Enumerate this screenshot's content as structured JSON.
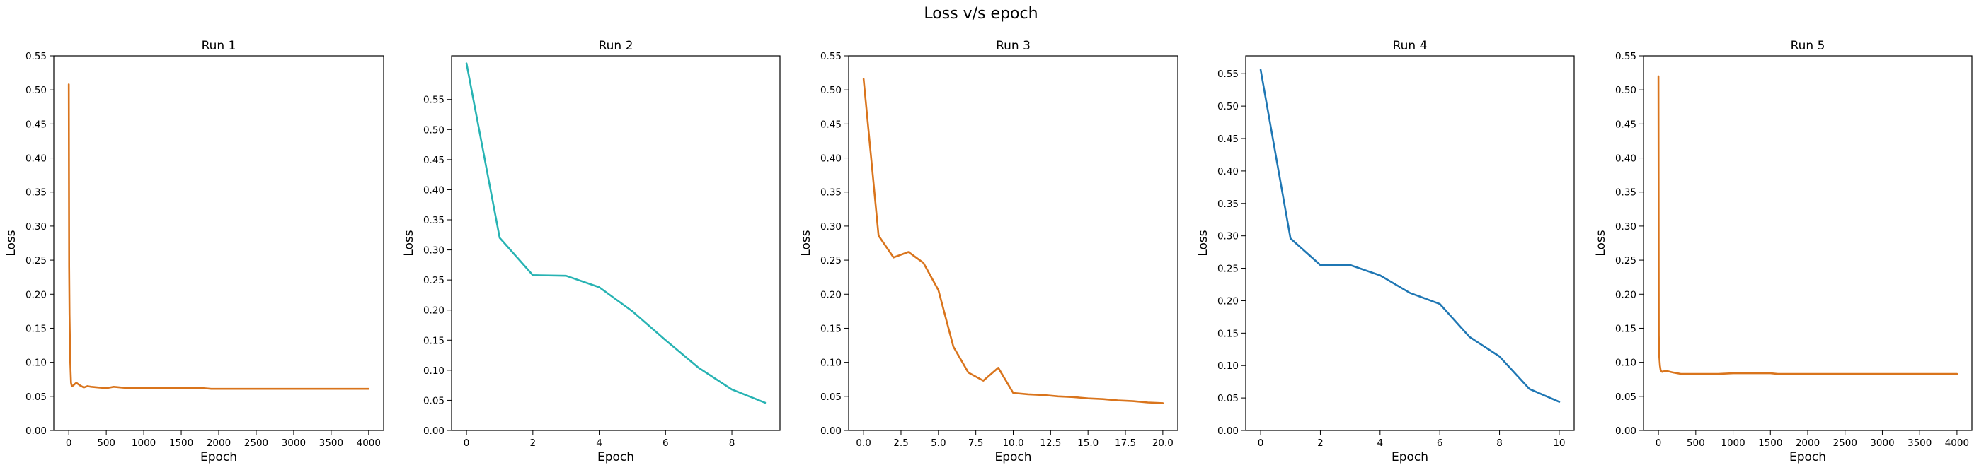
{
  "figure_title": "Loss v/s epoch",
  "colors": {
    "orange": "#d9741c",
    "teal": "#27b3b3",
    "blue": "#1f77b4"
  },
  "chart_data": [
    {
      "type": "line",
      "title": "Run 1",
      "xlabel": "Epoch",
      "ylabel": "Loss",
      "xlim": [
        -200,
        4200
      ],
      "ylim": [
        0,
        0.55
      ],
      "xticks": [
        0,
        500,
        1000,
        1500,
        2000,
        2500,
        3000,
        3500,
        4000
      ],
      "xtick_labels": [
        "0",
        "500",
        "1000",
        "1500",
        "2000",
        "2500",
        "3000",
        "3500",
        "4000"
      ],
      "yticks": [
        0,
        0.05,
        0.1,
        0.15,
        0.2,
        0.25,
        0.3,
        0.35,
        0.4,
        0.45,
        0.5,
        0.55
      ],
      "ytick_labels": [
        "0.00",
        "0.05",
        "0.10",
        "0.15",
        "0.20",
        "0.25",
        "0.30",
        "0.35",
        "0.40",
        "0.45",
        "0.50",
        "0.55"
      ],
      "grid": false,
      "color": "#d9741c",
      "series": [
        {
          "x": [
            0,
            5,
            10,
            20,
            30,
            40,
            60,
            80,
            100,
            150,
            200,
            250,
            300,
            400,
            500,
            600,
            700,
            800,
            900,
            1000,
            1500,
            1800,
            1900,
            2000,
            2500,
            3000,
            3500,
            4000
          ],
          "values": [
            0.508,
            0.24,
            0.17,
            0.1,
            0.07,
            0.065,
            0.066,
            0.068,
            0.07,
            0.066,
            0.063,
            0.065,
            0.064,
            0.063,
            0.062,
            0.064,
            0.063,
            0.062,
            0.062,
            0.062,
            0.062,
            0.062,
            0.061,
            0.061,
            0.061,
            0.061,
            0.061,
            0.061
          ]
        }
      ]
    },
    {
      "type": "line",
      "title": "Run 2",
      "xlabel": "Epoch",
      "ylabel": "Loss",
      "xlim": [
        -0.45,
        9.45
      ],
      "ylim": [
        0,
        0.6225
      ],
      "xticks": [
        0,
        2,
        4,
        6,
        8
      ],
      "xtick_labels": [
        "0",
        "2",
        "4",
        "6",
        "8"
      ],
      "yticks": [
        0,
        0.05,
        0.1,
        0.15,
        0.2,
        0.25,
        0.3,
        0.35,
        0.4,
        0.45,
        0.5,
        0.55
      ],
      "ytick_labels": [
        "0.00",
        "0.05",
        "0.10",
        "0.15",
        "0.20",
        "0.25",
        "0.30",
        "0.35",
        "0.40",
        "0.45",
        "0.50",
        "0.55"
      ],
      "grid": false,
      "color": "#27b3b3",
      "series": [
        {
          "x": [
            0,
            1,
            2,
            3,
            4,
            5,
            6,
            7,
            8,
            9
          ],
          "values": [
            0.61,
            0.32,
            0.258,
            0.257,
            0.238,
            0.198,
            0.15,
            0.104,
            0.068,
            0.046
          ]
        }
      ]
    },
    {
      "type": "line",
      "title": "Run 3",
      "xlabel": "Epoch",
      "ylabel": "Loss",
      "xlim": [
        -1,
        21
      ],
      "ylim": [
        0,
        0.55
      ],
      "xticks": [
        0,
        2.5,
        5,
        7.5,
        10,
        12.5,
        15,
        17.5,
        20
      ],
      "xtick_labels": [
        "0.0",
        "2.5",
        "5.0",
        "7.5",
        "10.0",
        "12.5",
        "15.0",
        "17.5",
        "20.0"
      ],
      "yticks": [
        0,
        0.05,
        0.1,
        0.15,
        0.2,
        0.25,
        0.3,
        0.35,
        0.4,
        0.45,
        0.5,
        0.55
      ],
      "ytick_labels": [
        "0.00",
        "0.05",
        "0.10",
        "0.15",
        "0.20",
        "0.25",
        "0.30",
        "0.35",
        "0.40",
        "0.45",
        "0.50",
        "0.55"
      ],
      "grid": false,
      "color": "#d9741c",
      "series": [
        {
          "x": [
            0,
            1,
            2,
            3,
            4,
            5,
            6,
            7,
            8,
            9,
            10,
            11,
            12,
            13,
            14,
            15,
            16,
            17,
            18,
            19,
            20
          ],
          "values": [
            0.516,
            0.286,
            0.254,
            0.262,
            0.246,
            0.206,
            0.123,
            0.085,
            0.073,
            0.092,
            0.055,
            0.053,
            0.052,
            0.05,
            0.049,
            0.047,
            0.046,
            0.044,
            0.043,
            0.041,
            0.04
          ]
        }
      ]
    },
    {
      "type": "line",
      "title": "Run 4",
      "xlabel": "Epoch",
      "ylabel": "Loss",
      "xlim": [
        -0.5,
        10.5
      ],
      "ylim": [
        0,
        0.5775
      ],
      "xticks": [
        0,
        2,
        4,
        6,
        8,
        10
      ],
      "xtick_labels": [
        "0",
        "2",
        "4",
        "6",
        "8",
        "10"
      ],
      "yticks": [
        0,
        0.05,
        0.1,
        0.15,
        0.2,
        0.25,
        0.3,
        0.35,
        0.4,
        0.45,
        0.5,
        0.55
      ],
      "ytick_labels": [
        "0.00",
        "0.05",
        "0.10",
        "0.15",
        "0.20",
        "0.25",
        "0.30",
        "0.35",
        "0.40",
        "0.45",
        "0.50",
        "0.55"
      ],
      "grid": false,
      "color": "#1f77b4",
      "series": [
        {
          "x": [
            0,
            1,
            2,
            3,
            4,
            5,
            6,
            7,
            8,
            9,
            10
          ],
          "values": [
            0.556,
            0.296,
            0.255,
            0.255,
            0.239,
            0.212,
            0.195,
            0.144,
            0.114,
            0.064,
            0.044
          ]
        }
      ]
    },
    {
      "type": "line",
      "title": "Run 5",
      "xlabel": "Epoch",
      "ylabel": "Loss",
      "xlim": [
        -200,
        4200
      ],
      "ylim": [
        0,
        0.55
      ],
      "xticks": [
        0,
        500,
        1000,
        1500,
        2000,
        2500,
        3000,
        3500,
        4000
      ],
      "xtick_labels": [
        "0",
        "500",
        "1000",
        "1500",
        "2000",
        "2500",
        "3000",
        "3500",
        "4000"
      ],
      "yticks": [
        0,
        0.05,
        0.1,
        0.15,
        0.2,
        0.25,
        0.3,
        0.35,
        0.4,
        0.45,
        0.5,
        0.55
      ],
      "ytick_labels": [
        "0.00",
        "0.05",
        "0.10",
        "0.15",
        "0.20",
        "0.25",
        "0.30",
        "0.35",
        "0.40",
        "0.45",
        "0.50",
        "0.55"
      ],
      "grid": false,
      "color": "#d9741c",
      "series": [
        {
          "x": [
            0,
            5,
            10,
            20,
            30,
            50,
            80,
            120,
            200,
            300,
            400,
            600,
            800,
            1000,
            1200,
            1500,
            1600,
            2000,
            2500,
            3000,
            3500,
            4000
          ],
          "values": [
            0.52,
            0.14,
            0.11,
            0.095,
            0.088,
            0.086,
            0.087,
            0.087,
            0.085,
            0.083,
            0.083,
            0.083,
            0.083,
            0.084,
            0.084,
            0.084,
            0.083,
            0.083,
            0.083,
            0.083,
            0.083,
            0.083
          ]
        }
      ]
    }
  ]
}
